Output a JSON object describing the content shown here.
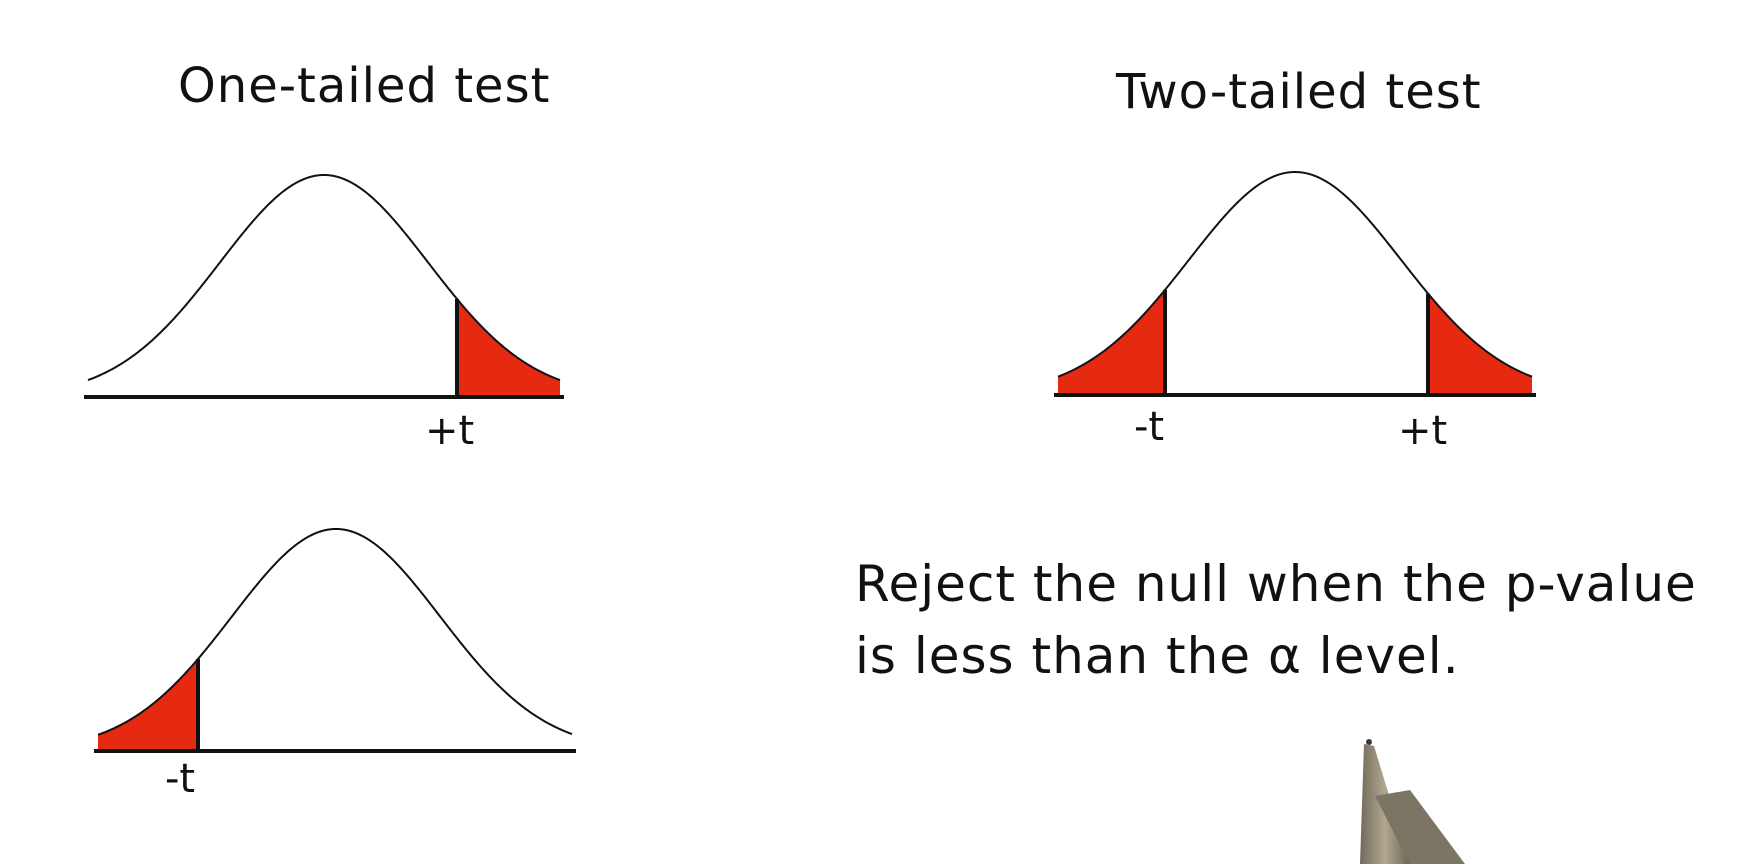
{
  "diagram": {
    "left_panel": {
      "title": "One-tailed test",
      "upper_curve": {
        "shaded_tail": "right",
        "tick_label": "+t"
      },
      "lower_curve": {
        "shaded_tail": "left",
        "tick_label": "-t"
      }
    },
    "right_panel": {
      "title": "Two-tailed test",
      "curve": {
        "shaded_tail": "both",
        "left_tick_label": "-t",
        "right_tick_label": "+t"
      }
    },
    "note": {
      "line1": "Reject the null when the p-value",
      "line2": "is less than the α level."
    }
  },
  "colors": {
    "tail_fill": "#e62a12",
    "ink": "#111111",
    "background": "#ffffff",
    "pen_body": "#8e8775"
  },
  "icons": {
    "pen": "pen-icon"
  }
}
